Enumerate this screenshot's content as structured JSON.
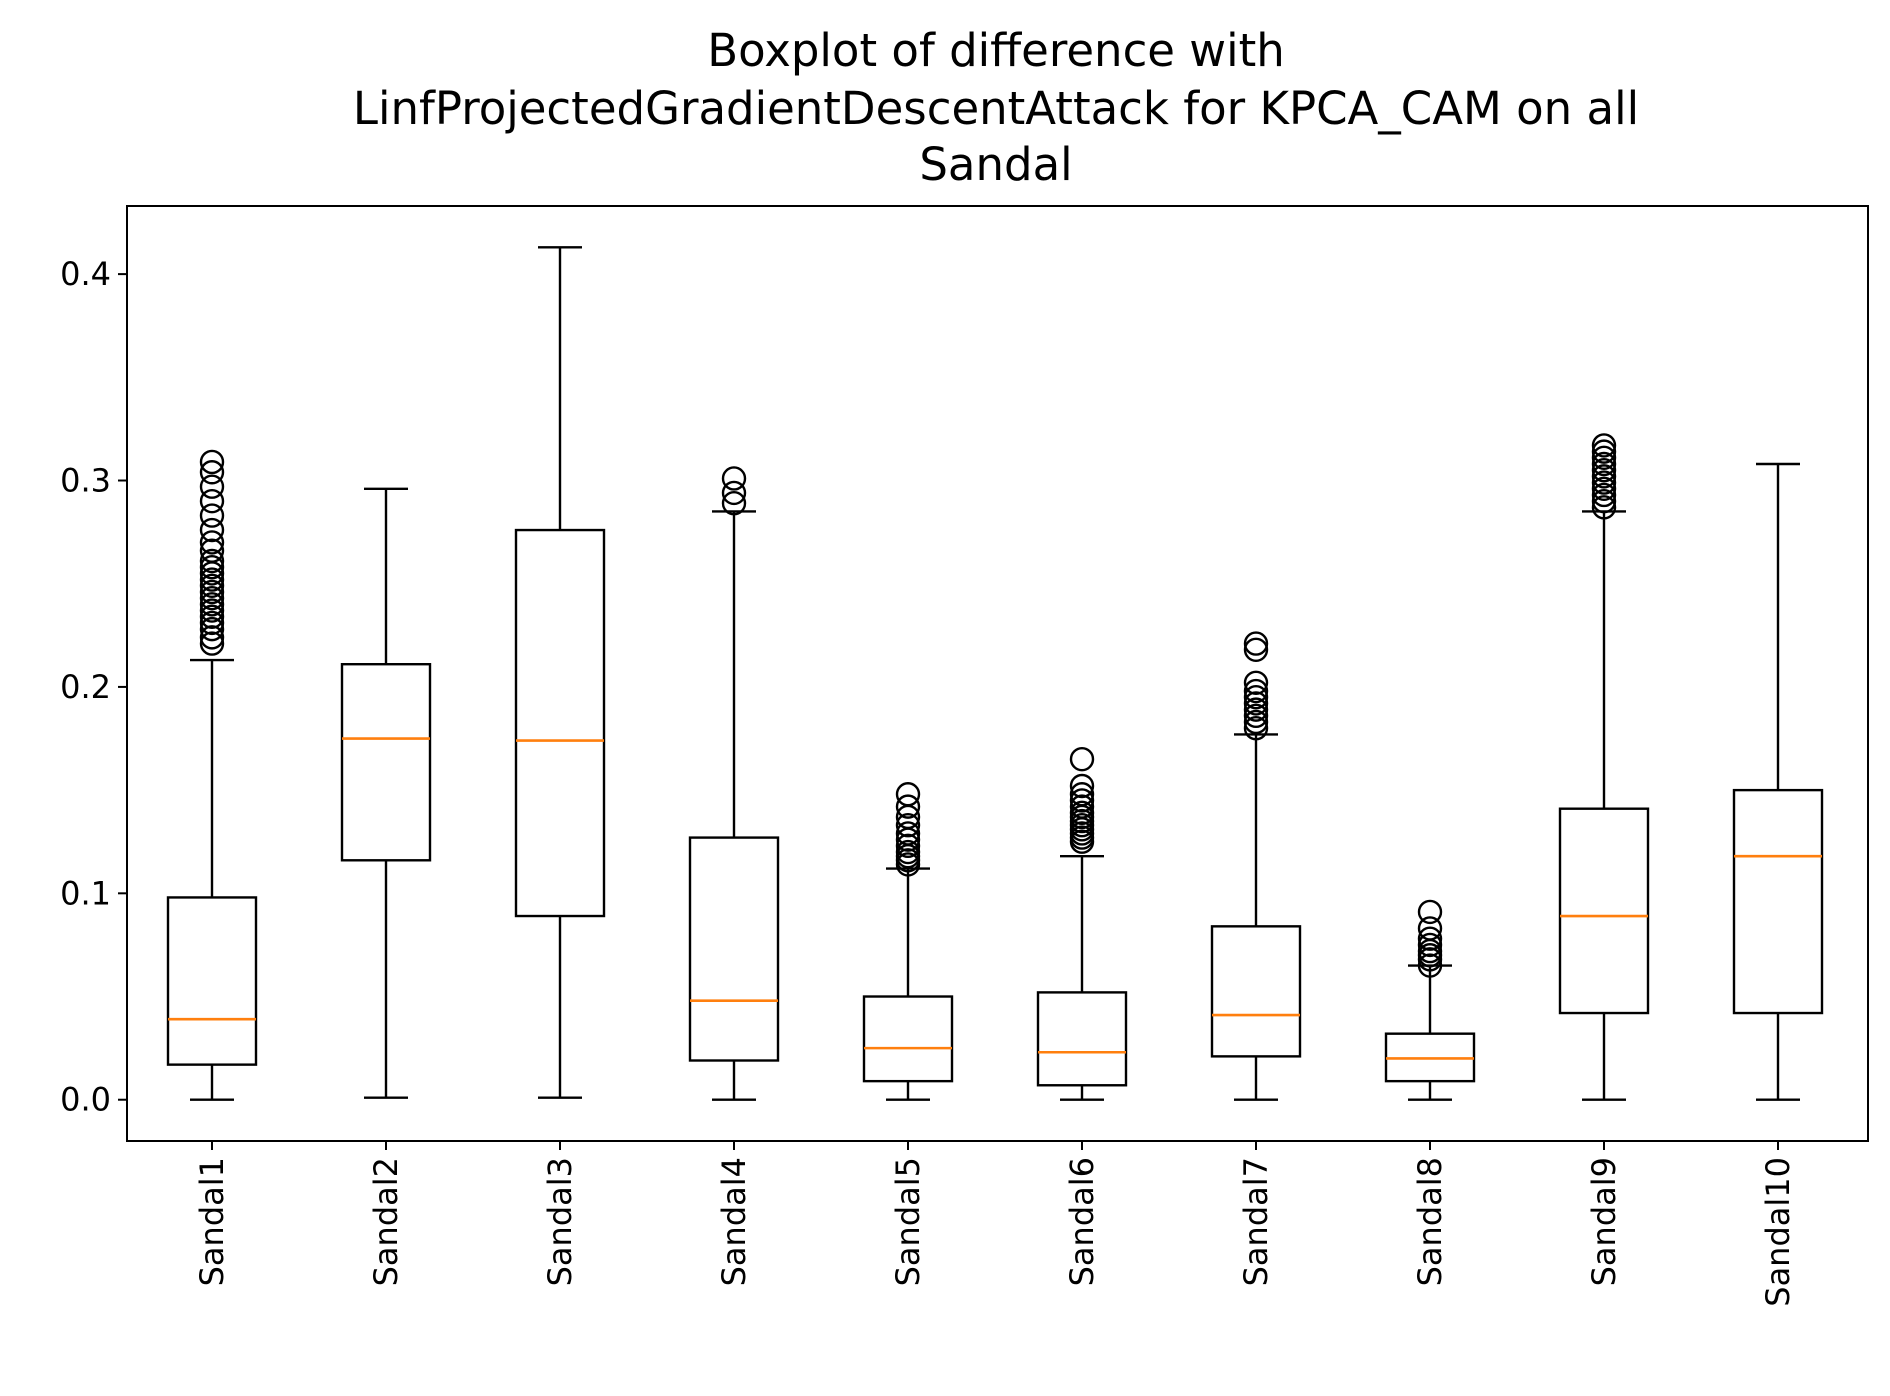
{
  "chart_data": {
    "type": "boxplot",
    "title_lines": [
      "Boxplot of difference with",
      "LinfProjectedGradientDescentAttack for KPCA_CAM on all",
      "Sandal"
    ],
    "xlabel": "",
    "ylabel": "",
    "ylim": [
      -0.02,
      0.433
    ],
    "yticks": [
      {
        "value": 0.0,
        "label": "0.0"
      },
      {
        "value": 0.1,
        "label": "0.1"
      },
      {
        "value": 0.2,
        "label": "0.2"
      },
      {
        "value": 0.3,
        "label": "0.3"
      },
      {
        "value": 0.4,
        "label": "0.4"
      }
    ],
    "grid": false,
    "colors": {
      "box": "#000000",
      "median": "#ff7f0e",
      "background": "#ffffff"
    },
    "categories": [
      "Sandal1",
      "Sandal2",
      "Sandal3",
      "Sandal4",
      "Sandal5",
      "Sandal6",
      "Sandal7",
      "Sandal8",
      "Sandal9",
      "Sandal10"
    ],
    "boxes": [
      {
        "name": "Sandal1",
        "whislo": 0.0,
        "q1": 0.017,
        "med": 0.039,
        "q3": 0.098,
        "whishi": 0.213,
        "fliers": [
          0.221,
          0.224,
          0.228,
          0.231,
          0.234,
          0.237,
          0.24,
          0.243,
          0.246,
          0.249,
          0.252,
          0.255,
          0.258,
          0.261,
          0.266,
          0.27,
          0.276,
          0.283,
          0.29,
          0.297,
          0.304,
          0.309
        ]
      },
      {
        "name": "Sandal2",
        "whislo": 0.001,
        "q1": 0.116,
        "med": 0.175,
        "q3": 0.211,
        "whishi": 0.296,
        "fliers": []
      },
      {
        "name": "Sandal3",
        "whislo": 0.001,
        "q1": 0.089,
        "med": 0.174,
        "q3": 0.276,
        "whishi": 0.413,
        "fliers": []
      },
      {
        "name": "Sandal4",
        "whislo": 0.0,
        "q1": 0.019,
        "med": 0.048,
        "q3": 0.127,
        "whishi": 0.285,
        "fliers": [
          0.289,
          0.294,
          0.301
        ]
      },
      {
        "name": "Sandal5",
        "whislo": 0.0,
        "q1": 0.009,
        "med": 0.025,
        "q3": 0.05,
        "whishi": 0.112,
        "fliers": [
          0.114,
          0.116,
          0.118,
          0.12,
          0.123,
          0.126,
          0.129,
          0.133,
          0.137,
          0.142,
          0.148
        ]
      },
      {
        "name": "Sandal6",
        "whislo": 0.0,
        "q1": 0.007,
        "med": 0.023,
        "q3": 0.052,
        "whishi": 0.118,
        "fliers": [
          0.125,
          0.127,
          0.129,
          0.131,
          0.133,
          0.135,
          0.137,
          0.139,
          0.142,
          0.145,
          0.148,
          0.152,
          0.165
        ]
      },
      {
        "name": "Sandal7",
        "whislo": 0.0,
        "q1": 0.021,
        "med": 0.041,
        "q3": 0.084,
        "whishi": 0.177,
        "fliers": [
          0.18,
          0.183,
          0.186,
          0.189,
          0.192,
          0.195,
          0.198,
          0.202,
          0.218,
          0.221
        ]
      },
      {
        "name": "Sandal8",
        "whislo": 0.0,
        "q1": 0.009,
        "med": 0.02,
        "q3": 0.032,
        "whishi": 0.065,
        "fliers": [
          0.065,
          0.068,
          0.07,
          0.072,
          0.075,
          0.078,
          0.083,
          0.091
        ]
      },
      {
        "name": "Sandal9",
        "whislo": 0.0,
        "q1": 0.042,
        "med": 0.089,
        "q3": 0.141,
        "whishi": 0.285,
        "fliers": [
          0.287,
          0.29,
          0.293,
          0.296,
          0.299,
          0.302,
          0.305,
          0.308,
          0.311,
          0.314,
          0.317
        ]
      },
      {
        "name": "Sandal10",
        "whislo": 0.0,
        "q1": 0.042,
        "med": 0.118,
        "q3": 0.15,
        "whishi": 0.308,
        "fliers": []
      }
    ]
  }
}
